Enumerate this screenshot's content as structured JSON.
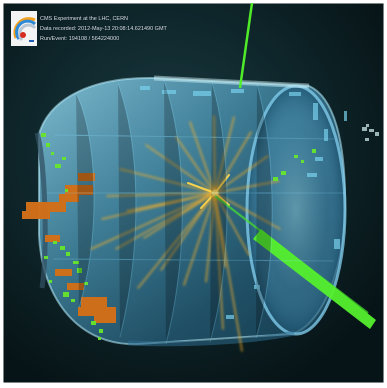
{
  "event_display": {
    "experiment": "CMS Experiment at the LHC, CERN",
    "data_recorded": "Data recorded: 2012-May-13 20:08:14.621490 GMT",
    "run_event": "Run/Event: 194108 / 564224000"
  },
  "colors": {
    "background": "#0b1a20",
    "detector": "#7cc8e8",
    "tracks": "#f0b235",
    "jets": "#55ef28",
    "calorimeter": "#d77719",
    "deposits": "#62e22b"
  },
  "icons": {
    "logo": "cms-logo-icon"
  }
}
